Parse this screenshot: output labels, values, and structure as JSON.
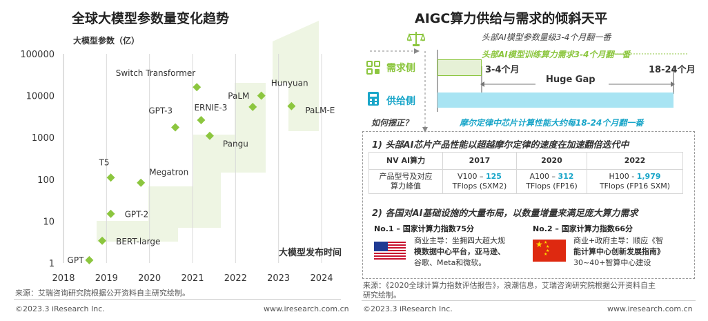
{
  "left": {
    "title": "全球大模型参数量变化趋势",
    "source": "来源：艾瑞咨询研究院根据公开资料自主研究绘制。",
    "copyright": "©2023.3 iResearch Inc.",
    "website": "www.iresearch.com.cn"
  },
  "chart_data": {
    "type": "scatter",
    "ylabel": "大模型参数（亿）",
    "xlabel": "大模型发布时间",
    "y_scale": "log",
    "ylim": [
      1,
      100000
    ],
    "xlim": [
      2018,
      2024
    ],
    "x_ticks": [
      "2018",
      "2019",
      "2020",
      "2021",
      "2022",
      "2023",
      "2024"
    ],
    "y_ticks": [
      "1",
      "10",
      "100",
      "1000",
      "10000",
      "100000"
    ],
    "grid": "vertical",
    "marker_color": "#8cc63f",
    "points": [
      {
        "label": "GPT",
        "x": 2018.6,
        "y": 1.17
      },
      {
        "label": "BERT-large",
        "x": 2018.9,
        "y": 3.4
      },
      {
        "label": "GPT-2",
        "x": 2019.1,
        "y": 15
      },
      {
        "label": "T5",
        "x": 2019.1,
        "y": 110
      },
      {
        "label": "Megatron",
        "x": 2019.8,
        "y": 83
      },
      {
        "label": "GPT-3",
        "x": 2020.6,
        "y": 1750
      },
      {
        "label": "Switch Transformer",
        "x": 2021.1,
        "y": 16000
      },
      {
        "label": "ERNIE-3",
        "x": 2021.2,
        "y": 2600
      },
      {
        "label": "Pangu",
        "x": 2021.4,
        "y": 1100
      },
      {
        "label": "PaLM",
        "x": 2022.4,
        "y": 5400
      },
      {
        "label": "Hunyuan",
        "x": 2022.6,
        "y": 10000
      },
      {
        "label": "PaLM-E",
        "x": 2023.3,
        "y": 5620
      }
    ]
  },
  "right": {
    "title": "AIGC算力供给与需求的倾斜天平",
    "model_note": "头部AI模型参数量级3-4个月翻一番",
    "train_note": "头部AI模型训练算力需求3-4个月翻一番",
    "demand_label": "需求侧",
    "supply_label": "供给侧",
    "period_left": "3-4个月",
    "gap": "Huge Gap",
    "period_right": "18-24个月",
    "how": "如何摆正？",
    "moore": "摩尔定律中芯片计算性能大约每18-24个月翻一番",
    "point1": "1) 头部AI芯片产品性能以超越摩尔定律的速度在加速翻倍迭代中",
    "table": {
      "header": [
        "NV AI算力",
        "2017",
        "2020",
        "2022"
      ],
      "row_label": "产品型号及对应算力峰值",
      "cells": [
        {
          "line1_pre": "V100 – ",
          "line1_hl": "125",
          "line2": "TFlops (SXM2)"
        },
        {
          "line1_pre": "A100 – ",
          "line1_hl": "312",
          "line2": "TFlops (FP16)"
        },
        {
          "line1_pre": "H100 - ",
          "line1_hl": "1,979",
          "line2": "TFlops (FP16 SXM)"
        }
      ]
    },
    "point2": "2) 各国对AI基础设施的大量布局，以数量增量来满足庞大算力需求",
    "us": {
      "title": "No.1 – 国家计算力指数75分",
      "line1": "商业主导：坐拥四大超大规",
      "line2": "模数据中心平台，亚马逊、",
      "line3": "谷歌、Meta和微软。"
    },
    "cn": {
      "title": "No.2 – 国家计算力指数66分",
      "line1": "商业+政府主导：顺应《智",
      "line2": "能计算中心创新发展指南》",
      "line3": "30~40+智算中心建设"
    },
    "source_line1": "来源：《2020全球计算力指数评估报告》，浪潮信息，艾瑞咨询研究院根据公开资料自主",
    "source_line2": "研究绘制。",
    "copyright": "©2023.3 iResearch Inc.",
    "website": "www.iresearch.com.cn"
  }
}
